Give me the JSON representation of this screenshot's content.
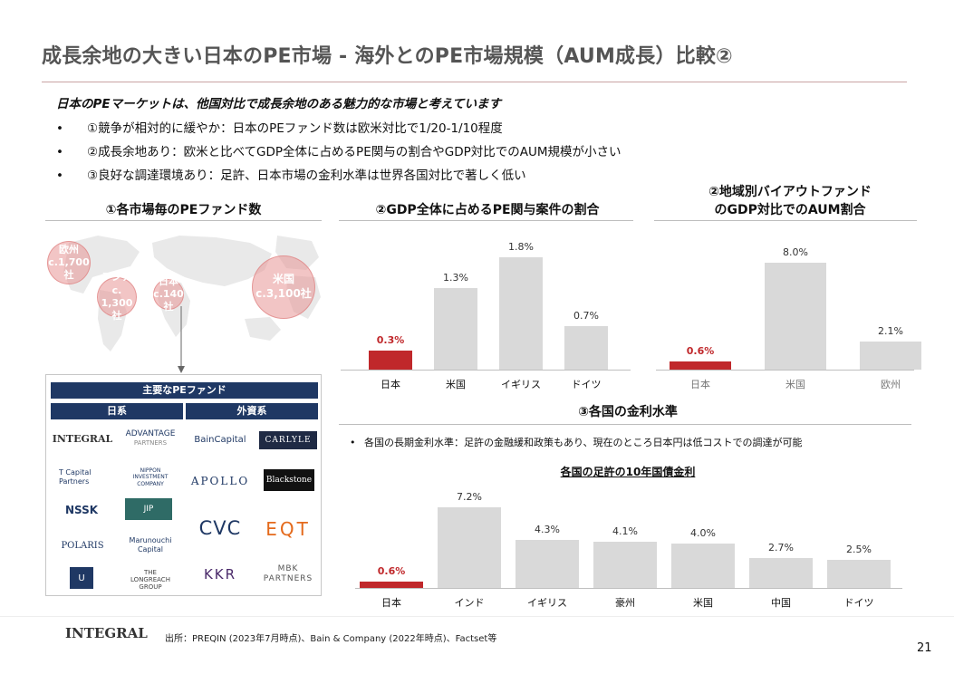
{
  "title": "成長余地の大きい日本のPE市場 - 海外とのPE市場規模（AUM成長）比較②",
  "lead": "日本のPEマーケットは、他国対比で成長余地のある魅力的な市場と考えています",
  "bullet_marker": "•",
  "bullets": [
    "①競争が相対的に緩やか：日本のPEファンド数は欧米対比で1/20-1/10程度",
    "②成長余地あり：欧米と比べてGDP全体に占めるPE関与の割合やGDP対比でのAUM規模が小さい",
    "③良好な調達環境あり：足許、日本市場の金利水準は世界各国対比で著しく低い"
  ],
  "section1": {
    "title": "①各市場毎のPEファンド数",
    "bubbles": [
      {
        "name": "欧州",
        "value": "c.1,700社"
      },
      {
        "name": "アジア",
        "value": "c. 1,300社"
      },
      {
        "name": "日本",
        "value": "c.140社"
      },
      {
        "name": "米国",
        "value": "c.3,100社"
      }
    ],
    "funds": {
      "header": "主要なPEファンド",
      "domestic_label": "日系",
      "foreign_label": "外資系",
      "domestic": [
        "INTEGRAL",
        "ADVANTAGE",
        "PARTNERS",
        "T Capital",
        "Partners",
        "NIPPON",
        "INVESTMENT",
        "COMPANY",
        "NSSK",
        "JIP",
        "POLARIS",
        "Marunouchi",
        "Capital",
        "THE",
        "LONGREACH",
        "GROUP"
      ],
      "foreign": [
        "BainCapital",
        "CARLYLE",
        "APOLLO",
        "Blackstone",
        "CVC",
        "EQT",
        "KKR",
        "MBK",
        "PARTNERS"
      ]
    }
  },
  "chart_data": [
    {
      "type": "bar",
      "title": "②GDP全体に占めるPE関与案件の割合",
      "categories": [
        "日本",
        "米国",
        "イギリス",
        "ドイツ"
      ],
      "values": [
        0.3,
        1.3,
        1.8,
        0.7
      ],
      "labels": [
        "0.3%",
        "1.3%",
        "1.8%",
        "0.7%"
      ],
      "highlight_color": "#c0282b",
      "bar_color": "#d9d9d9"
    },
    {
      "type": "bar",
      "title": "②地域別バイアウトファンドのGDP対比でのAUM割合",
      "title_lines": [
        "②地域別バイアウトファンド",
        "のGDP対比でのAUM割合"
      ],
      "categories": [
        "日本",
        "米国",
        "欧州"
      ],
      "values": [
        0.6,
        8.0,
        2.1
      ],
      "labels": [
        "0.6%",
        "8.0%",
        "2.1%"
      ],
      "highlight_color": "#c0282b",
      "bar_color": "#d9d9d9"
    },
    {
      "type": "bar",
      "title": "各国の足許の10年国債金利",
      "categories": [
        "日本",
        "インド",
        "イギリス",
        "豪州",
        "米国",
        "中国",
        "ドイツ"
      ],
      "values": [
        0.6,
        7.2,
        4.3,
        4.1,
        4.0,
        2.7,
        2.5
      ],
      "labels": [
        "0.6%",
        "7.2%",
        "4.3%",
        "4.1%",
        "4.0%",
        "2.7%",
        "2.5%"
      ],
      "highlight_color": "#c0282b",
      "bar_color": "#d9d9d9"
    }
  ],
  "section3": {
    "title": "③各国の金利水準",
    "note": "各国の長期金利水準：足許の金融緩和政策もあり、現在のところ日本円は低コストでの調達が可能"
  },
  "footer": {
    "logo": "INTEGRAL",
    "source": "出所：PREQIN (2023年7月時点)、Bain & Company (2022年時点)、Factset等",
    "page": "21"
  }
}
